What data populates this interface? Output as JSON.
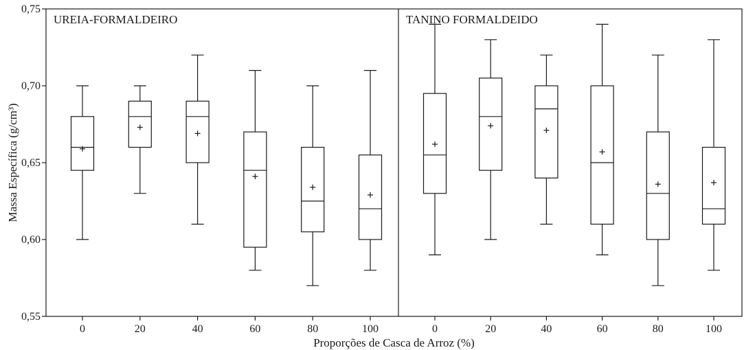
{
  "chart_data": {
    "type": "box",
    "xlabel": "Proporções de Casca de Arroz (%)",
    "ylabel": "Massa Específica (g/cm³)",
    "ylim": [
      0.55,
      0.75
    ],
    "yticks": [
      "0,55",
      "0,60",
      "0,65",
      "0,70",
      "0,75"
    ],
    "yticks_values": [
      0.55,
      0.6,
      0.65,
      0.7,
      0.75
    ],
    "categories": [
      "0",
      "20",
      "40",
      "60",
      "80",
      "100"
    ],
    "grid": false,
    "panels": [
      {
        "title": "UREIA-FORMALDEIRO",
        "boxes": [
          {
            "category": "0",
            "min": 0.6,
            "q1": 0.645,
            "median": 0.66,
            "q3": 0.68,
            "max": 0.7,
            "mean": 0.659
          },
          {
            "category": "20",
            "min": 0.63,
            "q1": 0.66,
            "median": 0.68,
            "q3": 0.69,
            "max": 0.7,
            "mean": 0.673
          },
          {
            "category": "40",
            "min": 0.61,
            "q1": 0.65,
            "median": 0.68,
            "q3": 0.69,
            "max": 0.72,
            "mean": 0.669
          },
          {
            "category": "60",
            "min": 0.58,
            "q1": 0.595,
            "median": 0.645,
            "q3": 0.67,
            "max": 0.71,
            "mean": 0.641
          },
          {
            "category": "80",
            "min": 0.57,
            "q1": 0.605,
            "median": 0.625,
            "q3": 0.66,
            "max": 0.7,
            "mean": 0.634
          },
          {
            "category": "100",
            "min": 0.58,
            "q1": 0.6,
            "median": 0.62,
            "q3": 0.655,
            "max": 0.71,
            "mean": 0.629
          }
        ]
      },
      {
        "title": "TANINO FORMALDEIDO",
        "boxes": [
          {
            "category": "0",
            "min": 0.59,
            "q1": 0.63,
            "median": 0.655,
            "q3": 0.695,
            "max": 0.74,
            "mean": 0.662
          },
          {
            "category": "20",
            "min": 0.6,
            "q1": 0.645,
            "median": 0.68,
            "q3": 0.705,
            "max": 0.73,
            "mean": 0.674
          },
          {
            "category": "40",
            "min": 0.61,
            "q1": 0.64,
            "median": 0.685,
            "q3": 0.7,
            "max": 0.72,
            "mean": 0.671
          },
          {
            "category": "60",
            "min": 0.59,
            "q1": 0.61,
            "median": 0.65,
            "q3": 0.7,
            "max": 0.74,
            "mean": 0.657
          },
          {
            "category": "80",
            "min": 0.57,
            "q1": 0.6,
            "median": 0.63,
            "q3": 0.67,
            "max": 0.72,
            "mean": 0.636
          },
          {
            "category": "100",
            "min": 0.58,
            "q1": 0.61,
            "median": 0.62,
            "q3": 0.66,
            "max": 0.73,
            "mean": 0.637
          }
        ]
      }
    ]
  }
}
